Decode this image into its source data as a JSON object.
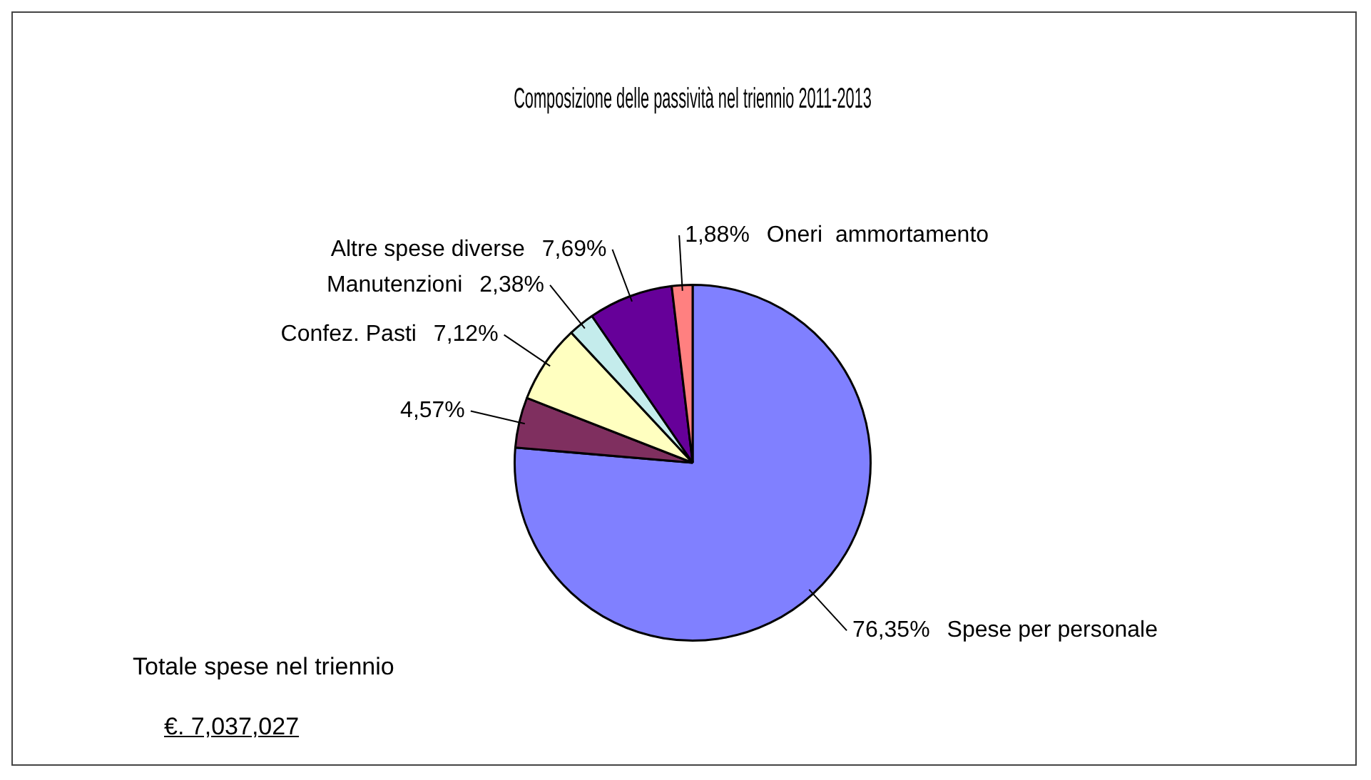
{
  "chart_data": {
    "type": "pie",
    "title": "Composizione delle passività nel triennio 2011-2013",
    "categories": [
      "Spese per personale",
      null,
      "Confez. Pasti",
      "Manutenzioni",
      "Altre spese diverse",
      "Oneri  ammortamento"
    ],
    "values": [
      76.35,
      4.57,
      7.12,
      2.38,
      7.69,
      1.88
    ],
    "value_labels": [
      "76,35%",
      "4,57%",
      "7,12%",
      "2,38%",
      "7,69%",
      "1,88%"
    ],
    "colors": [
      "#8080ff",
      "#7f2f5f",
      "#ffffc0",
      "#c4ecec",
      "#660099",
      "#ff8080"
    ],
    "annotations": [
      "Totale spese nel triennio",
      "€. 7,037,027"
    ],
    "legend": false
  }
}
